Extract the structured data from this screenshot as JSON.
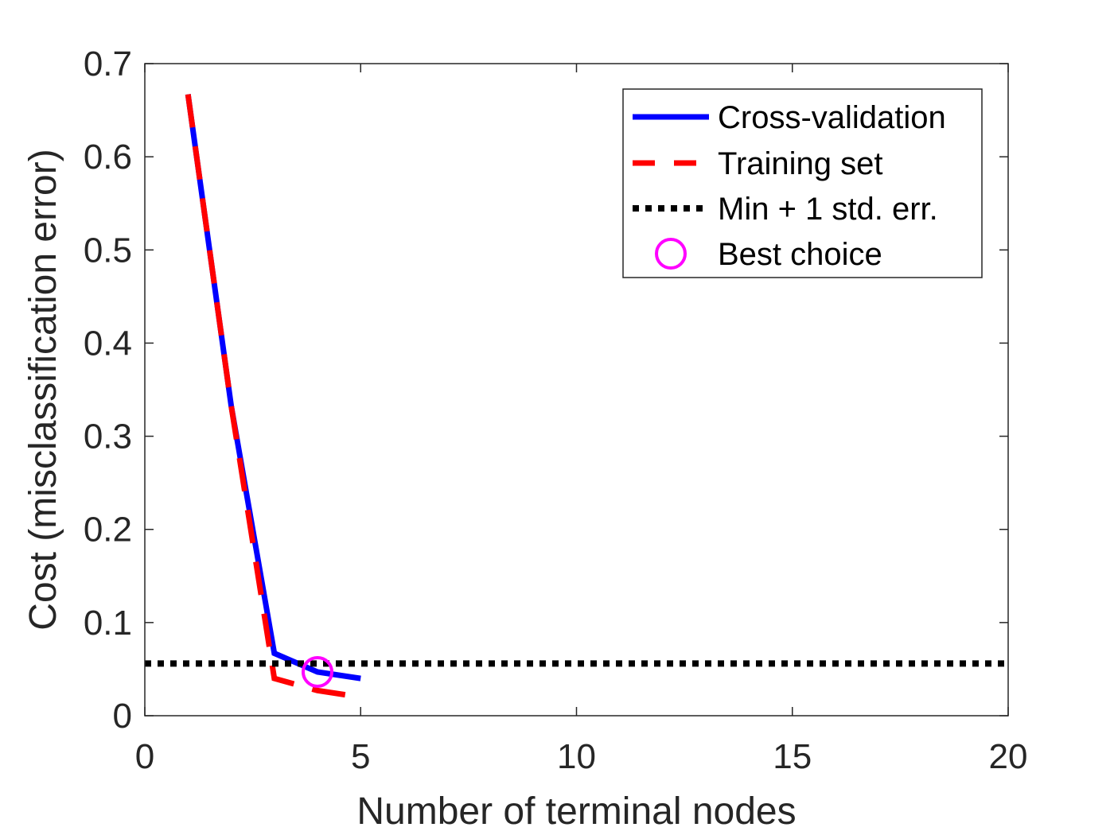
{
  "chart_data": {
    "type": "line",
    "xlabel": "Number of terminal nodes",
    "ylabel": "Cost (misclassification error)",
    "xlim": [
      0,
      20
    ],
    "ylim": [
      0,
      0.7
    ],
    "xticks": [
      "0",
      "5",
      "10",
      "15",
      "20"
    ],
    "yticks": [
      "0",
      "0.1",
      "0.2",
      "0.3",
      "0.4",
      "0.5",
      "0.6",
      "0.7"
    ],
    "grid": false,
    "legend_position": "top-right",
    "series": [
      {
        "name": "Cross-validation",
        "style": "solid",
        "color": "#0000ff",
        "x": [
          1,
          2,
          3,
          4,
          5
        ],
        "y": [
          0.667,
          0.333,
          0.067,
          0.047,
          0.04
        ]
      },
      {
        "name": "Training set",
        "style": "dashed",
        "color": "#ff0000",
        "x": [
          1,
          2,
          3,
          4,
          5
        ],
        "y": [
          0.667,
          0.333,
          0.04,
          0.027,
          0.02
        ]
      },
      {
        "name": "Min + 1 std. err.",
        "style": "dotted",
        "color": "#000000",
        "x": [
          0,
          20
        ],
        "y": [
          0.056,
          0.056
        ]
      },
      {
        "name": "Best choice",
        "style": "marker-circle",
        "color": "#ff00ff",
        "x": [
          4
        ],
        "y": [
          0.047
        ]
      }
    ]
  }
}
